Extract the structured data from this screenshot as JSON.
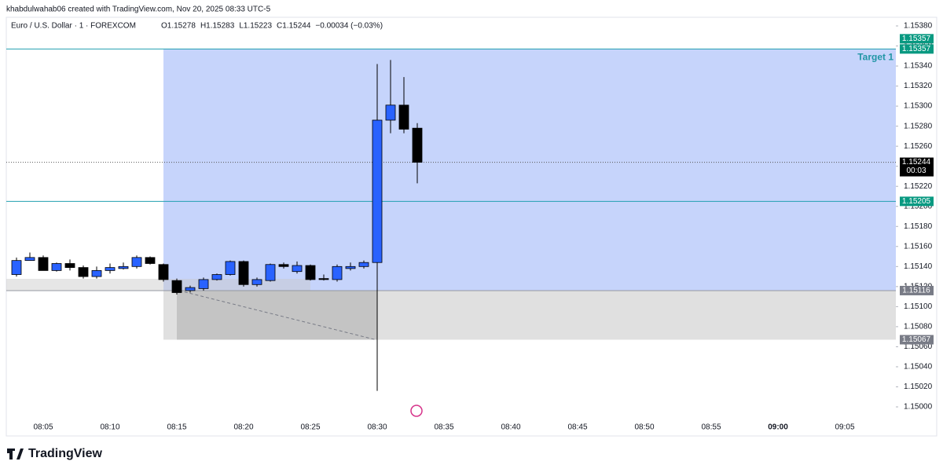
{
  "header": "khabdulwahab06 created with TradingView.com, Nov 20, 2025 08:33 UTC-5",
  "brand": "TradingView",
  "chart_data": {
    "type": "candlestick",
    "symbol": "Euro / U.S. Dollar · 1 · FOREXCOM",
    "ohlc_labels": [
      "O1.15278",
      "H1.15283",
      "L1.15223",
      "C1.15244"
    ],
    "change": "−0.00034 (−0.03%)",
    "x": [
      "08:03",
      "08:04",
      "08:05",
      "08:06",
      "08:07",
      "08:08",
      "08:09",
      "08:10",
      "08:11",
      "08:12",
      "08:13",
      "08:14",
      "08:15",
      "08:16",
      "08:17",
      "08:18",
      "08:19",
      "08:20",
      "08:21",
      "08:22",
      "08:23",
      "08:24",
      "08:25",
      "08:26",
      "08:27",
      "08:28",
      "08:29",
      "08:30",
      "08:31",
      "08:32",
      "08:33"
    ],
    "open": [
      1.15132,
      1.15146,
      1.15149,
      1.15136,
      1.15143,
      1.15139,
      1.1513,
      1.15136,
      1.15138,
      1.1514,
      1.15149,
      1.15142,
      1.15126,
      1.15116,
      1.15118,
      1.15127,
      1.15132,
      1.15145,
      1.15122,
      1.15126,
      1.15142,
      1.15135,
      1.15141,
      1.15128,
      1.15127,
      1.15138,
      1.1514,
      1.15144,
      1.15286,
      1.15301,
      1.15278
    ],
    "high": [
      1.15149,
      1.15154,
      1.15151,
      1.15144,
      1.15147,
      1.15141,
      1.1514,
      1.15143,
      1.15144,
      1.15151,
      1.1515,
      1.15143,
      1.15128,
      1.15121,
      1.15129,
      1.15133,
      1.15146,
      1.15146,
      1.15129,
      1.15143,
      1.15144,
      1.15145,
      1.15142,
      1.15132,
      1.15142,
      1.15144,
      1.15146,
      1.15342,
      1.15346,
      1.15329,
      1.15283
    ],
    "low": [
      1.1513,
      1.15146,
      1.15136,
      1.15135,
      1.15136,
      1.15128,
      1.15128,
      1.15133,
      1.15137,
      1.15138,
      1.15142,
      1.15125,
      1.15112,
      1.15114,
      1.15116,
      1.15126,
      1.15131,
      1.1512,
      1.1512,
      1.15125,
      1.15138,
      1.15133,
      1.15126,
      1.15126,
      1.15125,
      1.15136,
      1.15138,
      1.15016,
      1.15273,
      1.15273,
      1.15223
    ],
    "close": [
      1.15146,
      1.15149,
      1.15136,
      1.15143,
      1.15139,
      1.1513,
      1.15136,
      1.15139,
      1.1514,
      1.15149,
      1.15143,
      1.15127,
      1.15114,
      1.15119,
      1.15127,
      1.15132,
      1.15145,
      1.15122,
      1.15127,
      1.15142,
      1.1514,
      1.15141,
      1.15127,
      1.15127,
      1.1514,
      1.1514,
      1.15144,
      1.15286,
      1.15301,
      1.15277,
      1.15244
    ],
    "up_color": "#2962ff",
    "down_color": "#000000",
    "ylim": [
      1.15,
      1.1538
    ],
    "yticks": [
      {
        "value": 1.15,
        "label": "1.15000"
      },
      {
        "value": 1.1502,
        "label": "1.15020"
      },
      {
        "value": 1.1504,
        "label": "1.15040"
      },
      {
        "value": 1.1506,
        "label": "1.15060"
      },
      {
        "value": 1.1508,
        "label": "1.15080"
      },
      {
        "value": 1.151,
        "label": "1.15100"
      },
      {
        "value": 1.1512,
        "label": "1.15120"
      },
      {
        "value": 1.1514,
        "label": "1.15140"
      },
      {
        "value": 1.1516,
        "label": "1.15160"
      },
      {
        "value": 1.1518,
        "label": "1.15180"
      },
      {
        "value": 1.152,
        "label": "1.15200"
      },
      {
        "value": 1.1522,
        "label": "1.15220"
      },
      {
        "value": 1.1524,
        "label": "1.15240"
      },
      {
        "value": 1.1526,
        "label": "1.15260"
      },
      {
        "value": 1.1528,
        "label": "1.15280"
      },
      {
        "value": 1.153,
        "label": "1.15300"
      },
      {
        "value": 1.1532,
        "label": "1.15320"
      },
      {
        "value": 1.1534,
        "label": "1.15340"
      },
      {
        "value": 1.1536,
        "label": "1.15360"
      },
      {
        "value": 1.1538,
        "label": "1.15380"
      }
    ],
    "xticks": [
      "08:05",
      "08:10",
      "08:15",
      "08:20",
      "08:25",
      "08:30",
      "08:35",
      "08:40",
      "08:45",
      "08:50",
      "08:55",
      "09:00",
      "09:05"
    ],
    "target": 1.15357,
    "target_label": "Target 1",
    "entry": 1.15116,
    "stop": 1.15067,
    "level": 1.15205,
    "last": 1.15244,
    "countdown": "00:03"
  }
}
